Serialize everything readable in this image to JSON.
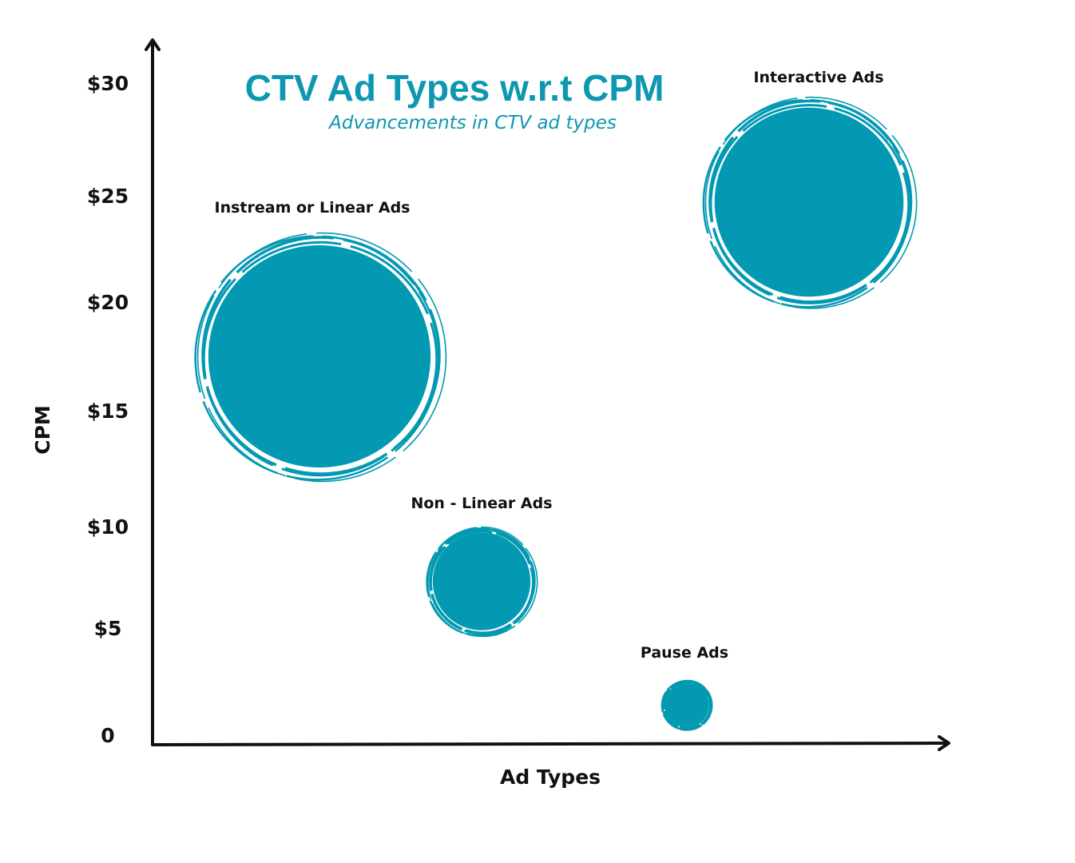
{
  "chart_data": {
    "type": "scatter",
    "title": "CTV Ad Types w.r.t CPM",
    "subtitle": "Advancements in CTV ad types",
    "xlabel": "Ad Types",
    "ylabel": "CPM",
    "y_ticks": [
      {
        "value": 0,
        "label": "0"
      },
      {
        "value": 5,
        "label": "$5"
      },
      {
        "value": 10,
        "label": "$10"
      },
      {
        "value": 15,
        "label": "$15"
      },
      {
        "value": 20,
        "label": "$20"
      },
      {
        "value": 25,
        "label": "$25"
      },
      {
        "value": 30,
        "label": "$30"
      }
    ],
    "ylim": [
      0,
      30
    ],
    "grid": false,
    "points": [
      {
        "label": "Instream or Linear Ads",
        "cpm": 17.5,
        "relative_size": 1.0
      },
      {
        "label": "Non - Linear Ads",
        "cpm": 7.3,
        "relative_size": 0.44
      },
      {
        "label": "Pause Ads",
        "cpm": 1.4,
        "relative_size": 0.2
      },
      {
        "label": "Interactive Ads",
        "cpm": 24.7,
        "relative_size": 0.85
      }
    ],
    "colors": {
      "bubble": "#0399b2",
      "title": "#0d97b0",
      "axis": "#111111"
    }
  }
}
